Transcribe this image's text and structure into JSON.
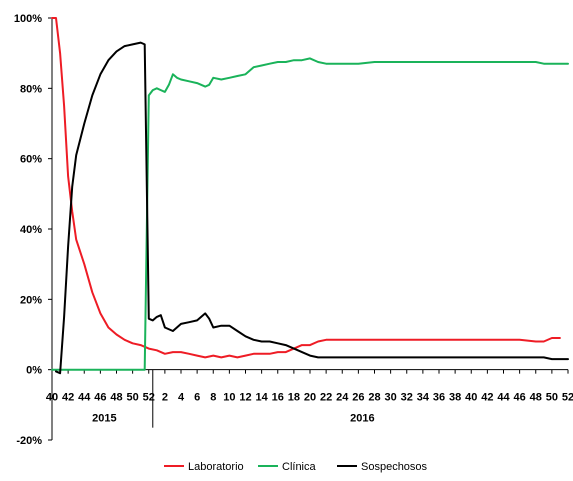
{
  "chart_data": {
    "type": "line",
    "title": "",
    "xlabel": "",
    "ylabel": "",
    "y_tick_labels": [
      "100%",
      "80%",
      "60%",
      "40%",
      "20%",
      "0%",
      "-20%"
    ],
    "y_tick_values": [
      100,
      80,
      60,
      40,
      20,
      0,
      -20
    ],
    "ylim": [
      -20,
      100
    ],
    "x_tick_labels": [
      "40",
      "42",
      "44",
      "46",
      "48",
      "50",
      "52",
      "2",
      "4",
      "6",
      "8",
      "10",
      "12",
      "14",
      "16",
      "18",
      "20",
      "22",
      "24",
      "26",
      "28",
      "30",
      "32",
      "34",
      "36",
      "38",
      "40",
      "42",
      "44",
      "46",
      "48",
      "50",
      "52"
    ],
    "x_tick_positions": [
      40,
      42,
      44,
      46,
      48,
      50,
      52,
      54,
      56,
      58,
      60,
      62,
      64,
      66,
      68,
      70,
      72,
      74,
      76,
      78,
      80,
      82,
      84,
      86,
      88,
      90,
      92,
      94,
      96,
      98,
      100,
      102,
      104
    ],
    "xlim": [
      40,
      104
    ],
    "years": [
      {
        "label": "2015",
        "center": 46.5
      },
      {
        "label": "2016",
        "center": 78.5
      }
    ],
    "year_divider": 52.5,
    "legend_position": "bottom",
    "series": [
      {
        "name": "Laboratorio",
        "color": "#ee1c25",
        "x": [
          40,
          40.5,
          41,
          41.5,
          42,
          42.5,
          43,
          44,
          45,
          46,
          47,
          48,
          49,
          50,
          51,
          52,
          53,
          54,
          55,
          56,
          57,
          58,
          59,
          60,
          61,
          62,
          63,
          64,
          65,
          66,
          67,
          68,
          69,
          70,
          71,
          72,
          73,
          74,
          75,
          76,
          78,
          80,
          82,
          84,
          86,
          88,
          90,
          92,
          94,
          96,
          98,
          100,
          101,
          102,
          103
        ],
        "y": [
          100,
          100,
          90,
          75,
          55,
          45,
          37,
          30,
          22,
          16,
          12,
          10,
          8.5,
          7.5,
          7,
          6,
          5.5,
          4.5,
          5,
          5,
          4.5,
          4,
          3.5,
          4,
          3.5,
          4,
          3.5,
          4,
          4.5,
          4.5,
          4.5,
          5,
          5,
          6,
          7,
          7,
          8,
          8.5,
          8.5,
          8.5,
          8.5,
          8.5,
          8.5,
          8.5,
          8.5,
          8.5,
          8.5,
          8.5,
          8.5,
          8.5,
          8.5,
          8,
          8,
          9,
          9
        ]
      },
      {
        "name": "Clínica",
        "color": "#1ab35a",
        "x": [
          40,
          40.5,
          41,
          42,
          44,
          46,
          48,
          50,
          51,
          51.5,
          52,
          52.5,
          53,
          53.5,
          54,
          54.5,
          55,
          55.5,
          56,
          57,
          58,
          59,
          59.5,
          60,
          61,
          62,
          63,
          64,
          65,
          66,
          67,
          68,
          69,
          70,
          71,
          72,
          73,
          74,
          75,
          76,
          78,
          80,
          82,
          84,
          86,
          88,
          90,
          92,
          94,
          96,
          98,
          100,
          101,
          102,
          103,
          104
        ],
        "y": [
          0,
          0,
          0,
          0,
          0,
          0,
          0,
          0,
          0,
          0,
          78,
          79.5,
          80,
          79.5,
          79,
          81,
          84,
          83,
          82.5,
          82,
          81.5,
          80.5,
          81,
          83,
          82.5,
          83,
          83.5,
          84,
          86,
          86.5,
          87,
          87.5,
          87.5,
          88,
          88,
          88.5,
          87.5,
          87,
          87,
          87,
          87,
          87.5,
          87.5,
          87.5,
          87.5,
          87.5,
          87.5,
          87.5,
          87.5,
          87.5,
          87.5,
          87.5,
          87,
          87,
          87,
          87
        ]
      },
      {
        "name": "Sospechosos",
        "color": "#000000",
        "x": [
          40.5,
          41,
          41.5,
          42,
          42.5,
          43,
          44,
          45,
          46,
          47,
          48,
          49,
          50,
          51,
          51.5,
          52,
          52.5,
          53,
          53.5,
          54,
          55,
          56,
          57,
          58,
          59,
          59.5,
          60,
          61,
          62,
          63,
          64,
          65,
          66,
          67,
          68,
          69,
          70,
          71,
          72,
          73,
          74,
          76,
          78,
          80,
          82,
          84,
          86,
          88,
          90,
          92,
          94,
          96,
          98,
          100,
          101,
          102,
          103,
          104
        ],
        "y": [
          -0.5,
          -1,
          15,
          35,
          52,
          61,
          70,
          78,
          84,
          88,
          90.5,
          92,
          92.5,
          93,
          92.5,
          14.5,
          14,
          15,
          15.5,
          12,
          11,
          13,
          13.5,
          14,
          16,
          14.5,
          12,
          12.5,
          12.5,
          11,
          9.5,
          8.5,
          8,
          8,
          7.5,
          7,
          6,
          5,
          4,
          3.5,
          3.5,
          3.5,
          3.5,
          3.5,
          3.5,
          3.5,
          3.5,
          3.5,
          3.5,
          3.5,
          3.5,
          3.5,
          3.5,
          3.5,
          3.5,
          3,
          3,
          3
        ]
      }
    ]
  }
}
